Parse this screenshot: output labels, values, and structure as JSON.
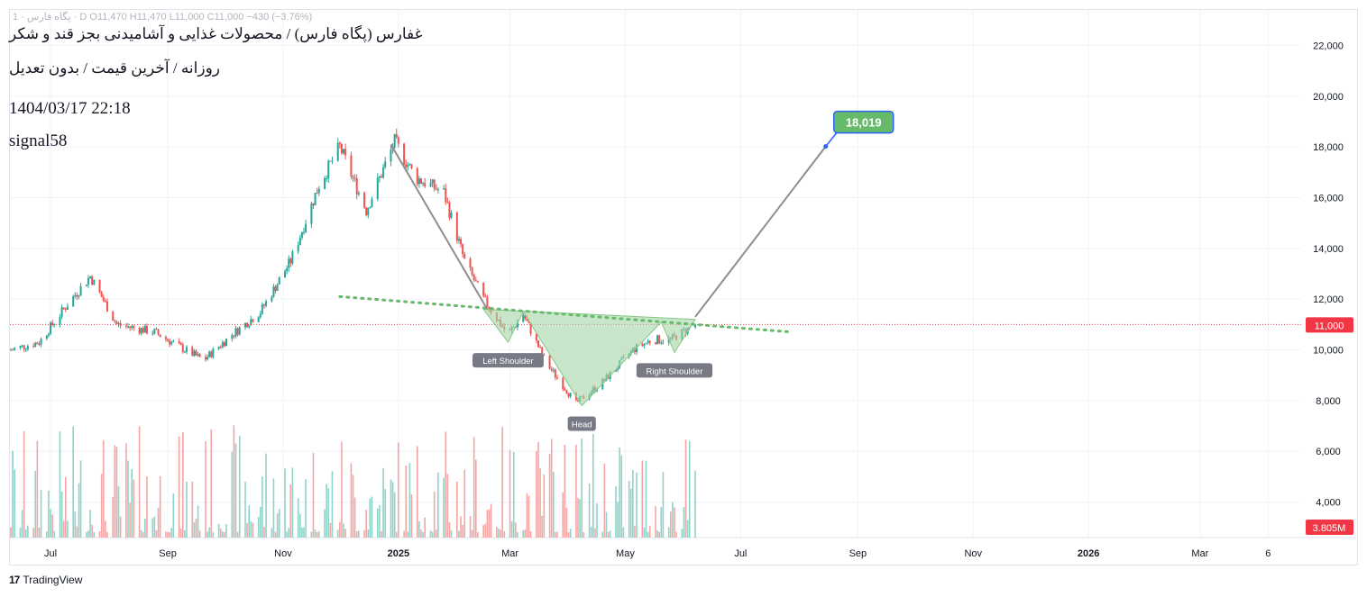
{
  "legend_top": "1 · پگاه فارس · D  O11,470 H11,470 L11,000 C11,000 −430 (−3.76%)",
  "header": {
    "title": "غفارس (پگاه فارس) / محصولات غذایی و آشامیدنی بجز قند و شکر",
    "subtitle": "روزانه / آخرین قیمت / بدون تعدیل",
    "timestamp": "1404/03/17 22:18",
    "author": "signal58"
  },
  "footer": {
    "brand": "TradingView"
  },
  "colors": {
    "up": "#26a69a",
    "down": "#ef5350",
    "vol_up": "#8fd3c9",
    "vol_down": "#f4a6a4",
    "pattern_fill": "#a5d6a7",
    "neckline": "#66bb6a",
    "projection": "#8e8e8e",
    "target_bg": "#66bb6a",
    "target_border": "#2962ff",
    "price_tag": "#f23645",
    "label_bg": "#787b86"
  },
  "chart_data": {
    "type": "candlestick",
    "y_ticks": [
      "22,000",
      "20,000",
      "18,000",
      "16,000",
      "14,000",
      "12,000",
      "10,000",
      "8,000",
      "6,000",
      "4,000"
    ],
    "y_tick_values": [
      22000,
      20000,
      18000,
      16000,
      14000,
      12000,
      10000,
      8000,
      6000,
      4000
    ],
    "ylim": [
      2600,
      23400
    ],
    "x_ticks": [
      {
        "label": "Jul",
        "date": "2024-07-01",
        "bold": false
      },
      {
        "label": "Sep",
        "date": "2024-09-01",
        "bold": false
      },
      {
        "label": "Nov",
        "date": "2024-11-01",
        "bold": false
      },
      {
        "label": "2025",
        "date": "2025-01-01",
        "bold": true
      },
      {
        "label": "Mar",
        "date": "2025-03-01",
        "bold": false
      },
      {
        "label": "May",
        "date": "2025-05-01",
        "bold": false
      },
      {
        "label": "Jul",
        "date": "2025-07-01",
        "bold": false
      },
      {
        "label": "Sep",
        "date": "2025-09-01",
        "bold": false
      },
      {
        "label": "Nov",
        "date": "2025-11-01",
        "bold": false
      },
      {
        "label": "2026",
        "date": "2026-01-01",
        "bold": true
      },
      {
        "label": "Mar",
        "date": "2026-03-01",
        "bold": false
      },
      {
        "label": "6",
        "date": "2026-04-06",
        "bold": false
      }
    ],
    "x_range": [
      "2024-06-10",
      "2026-04-23"
    ],
    "price_path": [
      {
        "date": "2024-06-10",
        "price": 10000
      },
      {
        "date": "2024-06-25",
        "price": 10300
      },
      {
        "date": "2024-07-10",
        "price": 11800
      },
      {
        "date": "2024-07-22",
        "price": 12900
      },
      {
        "date": "2024-08-05",
        "price": 11000
      },
      {
        "date": "2024-08-25",
        "price": 10700
      },
      {
        "date": "2024-09-10",
        "price": 10000
      },
      {
        "date": "2024-09-20",
        "price": 9600
      },
      {
        "date": "2024-10-05",
        "price": 10600
      },
      {
        "date": "2024-10-20",
        "price": 11500
      },
      {
        "date": "2024-11-05",
        "price": 13500
      },
      {
        "date": "2024-11-20",
        "price": 16500
      },
      {
        "date": "2024-12-01",
        "price": 18000
      },
      {
        "date": "2024-12-15",
        "price": 15500
      },
      {
        "date": "2024-12-30",
        "price": 18200
      },
      {
        "date": "2025-01-10",
        "price": 16800
      },
      {
        "date": "2025-01-25",
        "price": 16200
      },
      {
        "date": "2025-02-05",
        "price": 13500
      },
      {
        "date": "2025-02-15",
        "price": 12000
      },
      {
        "date": "2025-02-28",
        "price": 10600
      },
      {
        "date": "2025-03-08",
        "price": 11400
      },
      {
        "date": "2025-03-20",
        "price": 9500
      },
      {
        "date": "2025-04-05",
        "price": 7900
      },
      {
        "date": "2025-04-20",
        "price": 8800
      },
      {
        "date": "2025-05-05",
        "price": 10000
      },
      {
        "date": "2025-05-15",
        "price": 10400
      },
      {
        "date": "2025-05-25",
        "price": 10400
      },
      {
        "date": "2025-06-07",
        "price": 11000
      }
    ],
    "last_price": 11000,
    "last_price_label": "11,000",
    "volume_label": "3.805M",
    "pattern": {
      "name": "inverse head and shoulders",
      "points": [
        {
          "date": "2025-02-15",
          "price": 11600
        },
        {
          "date": "2025-02-28",
          "price": 10300
        },
        {
          "date": "2025-03-08",
          "price": 11500
        },
        {
          "date": "2025-04-08",
          "price": 7800
        },
        {
          "date": "2025-05-20",
          "price": 11100
        },
        {
          "date": "2025-05-27",
          "price": 9900
        },
        {
          "date": "2025-06-07",
          "price": 11200
        }
      ],
      "labels": [
        {
          "text": "Left Shoulder",
          "date": "2025-02-28",
          "price": 10300
        },
        {
          "text": "Head",
          "date": "2025-04-08",
          "price": 7800
        },
        {
          "text": "Right Shoulder",
          "date": "2025-05-27",
          "price": 9900
        }
      ]
    },
    "neckline": [
      {
        "date": "2024-12-01",
        "price": 12100
      },
      {
        "date": "2025-07-28",
        "price": 10700
      }
    ],
    "downtrend_line": [
      {
        "date": "2024-12-28",
        "price": 18100
      },
      {
        "date": "2025-02-17",
        "price": 11600
      }
    ],
    "projection": [
      {
        "date": "2025-06-07",
        "price": 11300
      },
      {
        "date": "2025-08-15",
        "price": 18019
      }
    ],
    "target": {
      "label": "18,019",
      "date": "2025-08-15",
      "price": 18019
    }
  }
}
